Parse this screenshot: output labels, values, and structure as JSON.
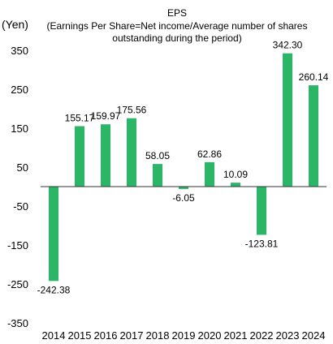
{
  "chart_data": {
    "type": "bar",
    "title": "EPS",
    "subtitle_line1": "(Earnings Per Share=Net income/Average number of shares",
    "subtitle_line2": "outstanding during the period)",
    "ylabel": "(Yen)",
    "xlabel": "",
    "categories": [
      "2014",
      "2015",
      "2016",
      "2017",
      "2018",
      "2019",
      "2020",
      "2021",
      "2022",
      "2023",
      "2024"
    ],
    "values": [
      -242.38,
      155.17,
      159.97,
      175.56,
      58.05,
      -6.05,
      62.86,
      10.09,
      -123.81,
      342.3,
      260.14
    ],
    "value_labels": [
      "-242.38",
      "155.17",
      "159.97",
      "175.56",
      "58.05",
      "-6.05",
      "62.86",
      "10.09",
      "-123.81",
      "342.30",
      "260.14"
    ],
    "ylim": [
      -350,
      350
    ],
    "yticks": [
      350,
      250,
      150,
      50,
      -50,
      -150,
      -250,
      -350
    ],
    "ytick_labels": [
      "350",
      "250",
      "150",
      "50",
      "-50",
      "-150",
      "-250",
      "-350"
    ],
    "grid": false,
    "legend": "none",
    "bar_color": "#2bb566"
  }
}
